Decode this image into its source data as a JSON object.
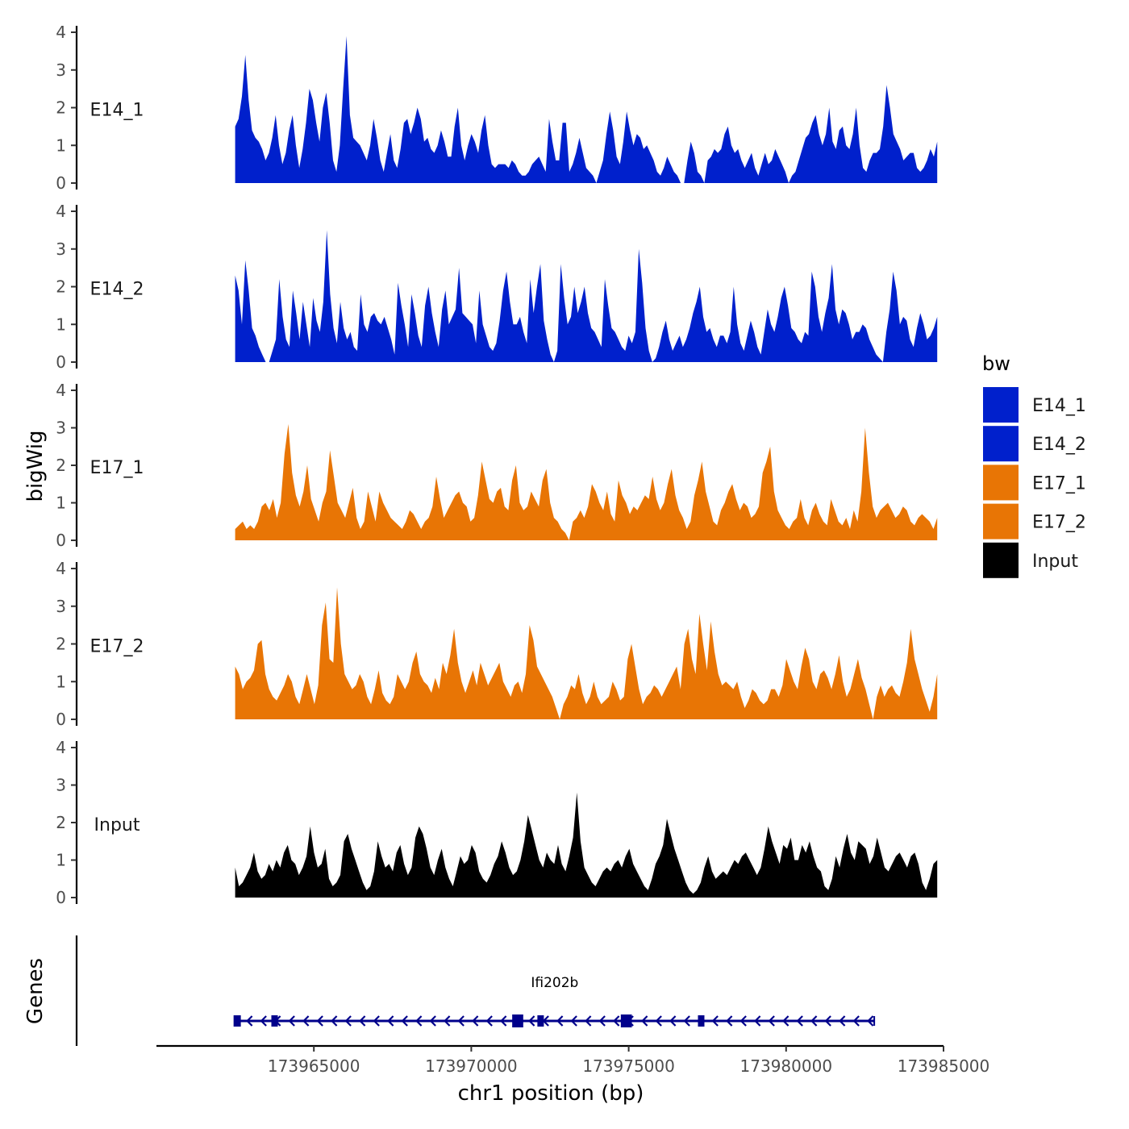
{
  "chart_data": {
    "type": "area",
    "ylabel": "bigWig",
    "ylim": [
      0,
      4
    ],
    "y_ticks": [
      "0",
      "1",
      "2",
      "3",
      "4"
    ],
    "x_range": [
      173962500,
      173984800
    ],
    "x_axis": {
      "label": "chr1 position (bp)",
      "ticks": [
        "173965000",
        "173970000",
        "173975000",
        "173980000",
        "173985000"
      ],
      "tick_values": [
        173965000,
        173970000,
        173975000,
        173980000,
        173985000
      ],
      "range": [
        173960000,
        173985000
      ]
    },
    "legend": {
      "title": "bw",
      "placement": "right",
      "items": [
        {
          "label": "E14_1",
          "color": "#0020CC"
        },
        {
          "label": "E14_2",
          "color": "#0020CC"
        },
        {
          "label": "E17_1",
          "color": "#E87505"
        },
        {
          "label": "E17_2",
          "color": "#E87505"
        },
        {
          "label": "Input",
          "color": "#000000"
        }
      ]
    },
    "series": [
      {
        "name": "E14_1",
        "color": "#0020CC",
        "values": [
          1.5,
          1.7,
          2.3,
          3.4,
          2.2,
          1.4,
          1.2,
          1.1,
          0.9,
          0.6,
          0.8,
          1.2,
          1.8,
          1.0,
          0.5,
          0.8,
          1.4,
          1.8,
          1.0,
          0.4,
          0.9,
          1.6,
          2.5,
          2.2,
          1.6,
          1.1,
          2.0,
          2.4,
          1.6,
          0.6,
          0.3,
          1.0,
          2.5,
          3.9,
          1.8,
          1.2,
          1.1,
          1.0,
          0.8,
          0.6,
          1.0,
          1.7,
          1.2,
          0.6,
          0.3,
          0.8,
          1.3,
          0.6,
          0.4,
          0.9,
          1.6,
          1.7,
          1.3,
          1.6,
          2.0,
          1.7,
          1.1,
          1.2,
          0.9,
          0.8,
          1.0,
          1.4,
          1.1,
          0.7,
          0.7,
          1.5,
          2.0,
          1.0,
          0.6,
          1.0,
          1.3,
          1.1,
          0.8,
          1.4,
          1.8,
          1.0,
          0.5,
          0.4,
          0.5,
          0.5,
          0.5,
          0.4,
          0.6,
          0.5,
          0.3,
          0.2,
          0.2,
          0.3,
          0.5,
          0.6,
          0.7,
          0.5,
          0.3,
          1.7,
          1.1,
          0.6,
          0.6,
          1.6,
          1.6,
          0.3,
          0.5,
          0.8,
          1.2,
          0.8,
          0.4,
          0.3,
          0.2,
          0.0,
          0.3,
          0.6,
          1.3,
          1.9,
          1.4,
          0.7,
          0.5,
          1.1,
          1.9,
          1.4,
          1.0,
          1.3,
          1.2,
          0.9,
          1.0,
          0.8,
          0.6,
          0.3,
          0.2,
          0.4,
          0.7,
          0.5,
          0.3,
          0.2,
          0.0,
          0.0,
          0.6,
          1.1,
          0.8,
          0.3,
          0.2,
          0.0,
          0.6,
          0.7,
          0.9,
          0.8,
          0.9,
          1.3,
          1.5,
          1.0,
          0.8,
          0.9,
          0.6,
          0.4,
          0.6,
          0.8,
          0.4,
          0.2,
          0.5,
          0.8,
          0.5,
          0.6,
          0.9,
          0.7,
          0.5,
          0.3,
          0.0,
          0.2,
          0.3,
          0.6,
          0.9,
          1.2,
          1.3,
          1.6,
          1.8,
          1.3,
          1.0,
          1.3,
          2.0,
          1.1,
          0.9,
          1.4,
          1.5,
          1.0,
          0.9,
          1.3,
          2.0,
          1.0,
          0.4,
          0.3,
          0.6,
          0.8,
          0.8,
          0.9,
          1.5,
          2.6,
          2.0,
          1.3,
          1.1,
          0.9,
          0.6,
          0.7,
          0.8,
          0.8,
          0.4,
          0.3,
          0.4,
          0.6,
          0.9,
          0.7,
          1.1
        ]
      },
      {
        "name": "E14_2",
        "color": "#0020CC",
        "values": [
          2.3,
          1.9,
          1.0,
          2.7,
          1.9,
          0.9,
          0.7,
          0.4,
          0.2,
          0.0,
          0.0,
          0.3,
          0.6,
          2.2,
          1.2,
          0.6,
          0.4,
          1.9,
          1.3,
          0.6,
          1.6,
          1.0,
          0.4,
          1.7,
          1.1,
          0.8,
          1.6,
          3.5,
          1.8,
          0.9,
          0.5,
          1.6,
          0.9,
          0.6,
          0.8,
          0.4,
          0.3,
          1.8,
          1.0,
          0.8,
          1.2,
          1.3,
          1.1,
          1.0,
          1.2,
          0.9,
          0.6,
          0.2,
          2.1,
          1.5,
          1.0,
          0.4,
          1.8,
          1.3,
          0.7,
          0.4,
          1.5,
          2.0,
          1.3,
          0.8,
          0.4,
          1.4,
          1.9,
          1.0,
          1.2,
          1.4,
          2.5,
          1.3,
          1.2,
          1.1,
          1.0,
          0.5,
          1.9,
          1.0,
          0.7,
          0.4,
          0.3,
          0.5,
          1.1,
          1.9,
          2.4,
          1.6,
          1.0,
          1.0,
          1.2,
          0.8,
          0.5,
          2.2,
          1.3,
          2.0,
          2.6,
          1.1,
          0.6,
          0.2,
          0.0,
          0.3,
          2.6,
          1.7,
          1.0,
          1.2,
          2.0,
          1.3,
          1.6,
          2.0,
          1.3,
          0.9,
          0.8,
          0.6,
          0.4,
          2.2,
          1.5,
          0.9,
          0.8,
          0.6,
          0.4,
          0.3,
          0.7,
          0.5,
          0.8,
          3.0,
          2.1,
          0.9,
          0.3,
          0.0,
          0.1,
          0.4,
          0.8,
          1.1,
          0.6,
          0.3,
          0.5,
          0.7,
          0.4,
          0.6,
          0.9,
          1.3,
          1.6,
          2.0,
          1.2,
          0.8,
          0.9,
          0.6,
          0.4,
          0.7,
          0.7,
          0.5,
          0.8,
          2.0,
          1.0,
          0.5,
          0.3,
          0.7,
          1.1,
          0.8,
          0.4,
          0.2,
          0.8,
          1.4,
          1.0,
          0.8,
          1.2,
          1.7,
          2.0,
          1.5,
          0.9,
          0.8,
          0.6,
          0.5,
          0.8,
          0.7,
          2.4,
          2.0,
          1.2,
          0.8,
          1.3,
          1.7,
          2.6,
          1.4,
          1.0,
          1.4,
          1.3,
          1.0,
          0.6,
          0.8,
          0.8,
          1.0,
          0.9,
          0.6,
          0.4,
          0.2,
          0.1,
          0.0,
          0.8,
          1.4,
          2.4,
          1.9,
          1.0,
          1.2,
          1.1,
          0.6,
          0.4,
          0.9,
          1.3,
          1.0,
          0.6,
          0.7,
          0.9,
          1.2
        ]
      },
      {
        "name": "E17_1",
        "color": "#E87505",
        "values": [
          0.3,
          0.4,
          0.5,
          0.3,
          0.4,
          0.3,
          0.5,
          0.9,
          1.0,
          0.8,
          1.1,
          0.6,
          1.0,
          2.3,
          3.1,
          1.8,
          1.2,
          0.9,
          1.3,
          2.0,
          1.1,
          0.8,
          0.5,
          1.0,
          1.3,
          2.4,
          1.7,
          1.0,
          0.8,
          0.6,
          1.0,
          1.4,
          0.6,
          0.3,
          0.5,
          1.3,
          0.9,
          0.5,
          1.3,
          1.0,
          0.8,
          0.6,
          0.5,
          0.4,
          0.3,
          0.5,
          0.8,
          0.7,
          0.5,
          0.3,
          0.5,
          0.6,
          0.9,
          1.7,
          1.1,
          0.6,
          0.8,
          1.0,
          1.2,
          1.3,
          1.0,
          0.9,
          0.5,
          0.6,
          1.2,
          2.1,
          1.6,
          1.1,
          1.0,
          1.3,
          1.4,
          0.9,
          0.8,
          1.6,
          2.0,
          1.0,
          0.8,
          0.9,
          1.3,
          1.1,
          0.9,
          1.6,
          1.9,
          1.0,
          0.6,
          0.5,
          0.3,
          0.2,
          0.0,
          0.5,
          0.6,
          0.8,
          0.6,
          0.9,
          1.5,
          1.3,
          1.0,
          0.8,
          1.3,
          0.7,
          0.5,
          1.6,
          1.2,
          1.0,
          0.7,
          0.9,
          0.8,
          1.0,
          1.2,
          1.1,
          1.7,
          1.1,
          0.8,
          1.0,
          1.5,
          1.9,
          1.2,
          0.8,
          0.6,
          0.3,
          0.5,
          1.2,
          1.6,
          2.1,
          1.3,
          0.9,
          0.5,
          0.4,
          0.8,
          1.0,
          1.3,
          1.5,
          1.1,
          0.8,
          1.0,
          0.9,
          0.6,
          0.7,
          0.9,
          1.8,
          2.1,
          2.5,
          1.3,
          0.8,
          0.6,
          0.4,
          0.3,
          0.5,
          0.6,
          1.1,
          0.6,
          0.4,
          0.8,
          1.0,
          0.7,
          0.5,
          0.4,
          1.1,
          0.8,
          0.5,
          0.4,
          0.6,
          0.3,
          0.8,
          0.5,
          1.3,
          3.0,
          1.8,
          0.9,
          0.6,
          0.8,
          0.9,
          1.0,
          0.8,
          0.6,
          0.7,
          0.9,
          0.8,
          0.5,
          0.4,
          0.6,
          0.7,
          0.6,
          0.5,
          0.3,
          0.6
        ]
      },
      {
        "name": "E17_2",
        "color": "#E87505",
        "values": [
          1.4,
          1.2,
          0.8,
          1.0,
          1.1,
          1.3,
          2.0,
          2.1,
          1.2,
          0.8,
          0.6,
          0.5,
          0.7,
          0.9,
          1.2,
          1.0,
          0.6,
          0.4,
          0.8,
          1.2,
          0.8,
          0.4,
          0.9,
          2.5,
          3.1,
          1.6,
          1.5,
          3.5,
          2.0,
          1.2,
          1.0,
          0.8,
          0.9,
          1.2,
          1.0,
          0.6,
          0.4,
          0.8,
          1.3,
          0.7,
          0.5,
          0.4,
          0.6,
          1.2,
          1.0,
          0.8,
          1.0,
          1.5,
          1.8,
          1.2,
          1.0,
          0.9,
          0.7,
          1.1,
          0.8,
          1.5,
          1.2,
          1.7,
          2.4,
          1.5,
          1.0,
          0.7,
          1.0,
          1.3,
          0.9,
          1.5,
          1.2,
          0.9,
          1.1,
          1.3,
          1.5,
          1.0,
          0.8,
          0.6,
          0.9,
          1.0,
          0.7,
          1.2,
          2.5,
          2.1,
          1.4,
          1.2,
          1.0,
          0.8,
          0.6,
          0.3,
          0.0,
          0.4,
          0.6,
          0.9,
          0.8,
          1.2,
          0.7,
          0.4,
          0.6,
          1.0,
          0.6,
          0.4,
          0.5,
          0.6,
          1.0,
          0.8,
          0.5,
          0.6,
          1.6,
          2.0,
          1.4,
          0.8,
          0.4,
          0.6,
          0.7,
          0.9,
          0.8,
          0.6,
          0.8,
          1.0,
          1.2,
          1.4,
          0.8,
          2.0,
          2.4,
          1.6,
          1.2,
          2.8,
          2.0,
          1.3,
          2.6,
          1.8,
          1.2,
          0.9,
          1.0,
          0.9,
          0.8,
          1.0,
          0.6,
          0.3,
          0.5,
          0.8,
          0.7,
          0.5,
          0.4,
          0.5,
          0.8,
          0.8,
          0.6,
          0.9,
          1.6,
          1.3,
          1.0,
          0.8,
          1.4,
          1.9,
          1.6,
          1.0,
          0.8,
          1.2,
          1.3,
          1.1,
          0.8,
          1.2,
          1.7,
          1.0,
          0.6,
          0.8,
          1.2,
          1.6,
          1.1,
          0.8,
          0.4,
          0.0,
          0.6,
          0.9,
          0.6,
          0.8,
          0.9,
          0.7,
          0.6,
          1.0,
          1.5,
          2.4,
          1.6,
          1.2,
          0.8,
          0.5,
          0.2,
          0.6,
          1.2
        ]
      },
      {
        "name": "Input",
        "color": "#000000",
        "values": [
          0.8,
          0.3,
          0.4,
          0.6,
          0.8,
          1.2,
          0.7,
          0.5,
          0.6,
          0.9,
          0.7,
          1.0,
          0.8,
          1.2,
          1.4,
          1.0,
          0.9,
          0.6,
          0.8,
          1.1,
          1.9,
          1.2,
          0.8,
          0.9,
          1.3,
          0.5,
          0.3,
          0.4,
          0.6,
          1.5,
          1.7,
          1.3,
          1.0,
          0.7,
          0.4,
          0.2,
          0.3,
          0.7,
          1.5,
          1.1,
          0.8,
          0.9,
          0.7,
          1.2,
          1.4,
          0.9,
          0.6,
          0.8,
          1.6,
          1.9,
          1.7,
          1.3,
          0.8,
          0.6,
          1.0,
          1.3,
          0.8,
          0.5,
          0.3,
          0.7,
          1.1,
          0.9,
          1.0,
          1.4,
          1.2,
          0.7,
          0.5,
          0.4,
          0.6,
          0.9,
          1.1,
          1.5,
          1.2,
          0.8,
          0.6,
          0.7,
          1.0,
          1.5,
          2.2,
          1.8,
          1.4,
          1.0,
          0.8,
          1.2,
          1.0,
          0.9,
          1.4,
          0.9,
          0.7,
          1.1,
          1.6,
          2.8,
          1.5,
          0.8,
          0.6,
          0.4,
          0.3,
          0.5,
          0.7,
          0.8,
          0.7,
          0.9,
          1.0,
          0.8,
          1.1,
          1.3,
          0.9,
          0.7,
          0.5,
          0.3,
          0.2,
          0.5,
          0.9,
          1.1,
          1.4,
          2.1,
          1.7,
          1.3,
          1.0,
          0.7,
          0.4,
          0.2,
          0.1,
          0.2,
          0.4,
          0.8,
          1.1,
          0.7,
          0.5,
          0.6,
          0.7,
          0.6,
          0.8,
          1.0,
          0.9,
          1.1,
          1.2,
          1.0,
          0.8,
          0.6,
          0.8,
          1.3,
          1.9,
          1.5,
          1.2,
          0.9,
          1.4,
          1.3,
          1.6,
          1.0,
          1.0,
          1.4,
          1.2,
          1.5,
          1.1,
          0.8,
          0.7,
          0.3,
          0.2,
          0.5,
          1.1,
          0.8,
          1.3,
          1.7,
          1.2,
          1.0,
          1.5,
          1.4,
          1.3,
          0.9,
          1.1,
          1.6,
          1.2,
          0.8,
          0.7,
          0.9,
          1.1,
          1.2,
          1.0,
          0.8,
          1.1,
          1.2,
          0.9,
          0.4,
          0.2,
          0.5,
          0.9,
          1.0
        ]
      }
    ],
    "genes_track": {
      "ylabel": "Genes",
      "gene_label": "Ifi202b",
      "gene_color": "#00008B",
      "strand": "-",
      "gene_start": 173962500,
      "gene_end": 173982800,
      "exons": [
        {
          "start": 173962450,
          "end": 173962680
        },
        {
          "start": 173963650,
          "end": 173963850
        },
        {
          "start": 173971300,
          "end": 173971650
        },
        {
          "start": 173972100,
          "end": 173972300
        },
        {
          "start": 173974750,
          "end": 173975100
        },
        {
          "start": 173977200,
          "end": 173977360
        }
      ]
    }
  }
}
